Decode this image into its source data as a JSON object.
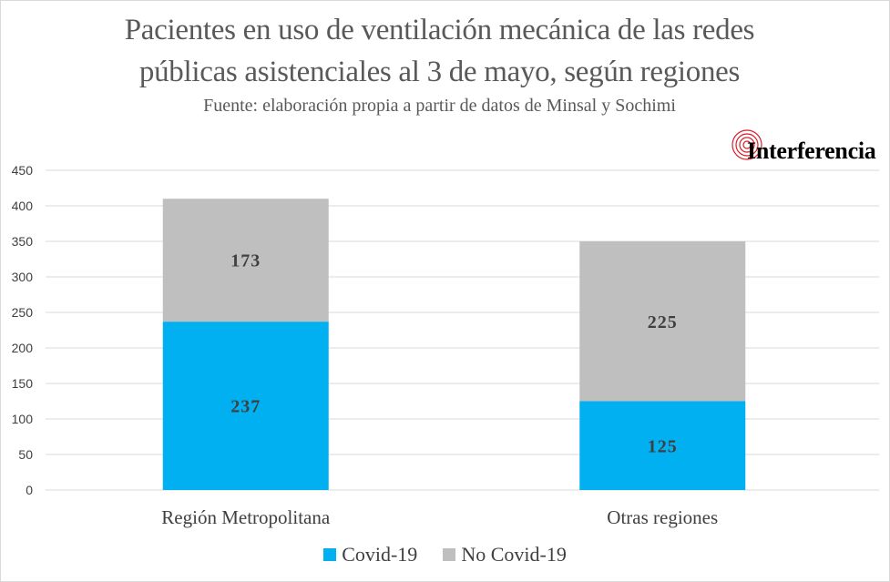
{
  "header": {
    "title_line1": "Pacientes en uso de ventilación mecánica de las redes",
    "title_line2": "públicas asistenciales al 3 de mayo, según regiones",
    "subtitle": "Fuente: elaboración propia a partir de datos de Minsal y Sochimi"
  },
  "logo": {
    "text": "Interferencia",
    "icon": "concentric-circles-icon",
    "color": "#d81e2a"
  },
  "colors": {
    "covid": "#00b0f0",
    "no_covid": "#bfbfbf",
    "grid": "#d9d9d9",
    "axis_text": "#404040"
  },
  "chart_data": {
    "type": "bar",
    "stacked": true,
    "title": "Pacientes en uso de ventilación mecánica de las redes públicas asistenciales al 3 de mayo, según regiones",
    "categories": [
      "Región Metropolitana",
      "Otras regiones"
    ],
    "series": [
      {
        "name": "Covid-19",
        "values": [
          237,
          125
        ],
        "color": "#00b0f0"
      },
      {
        "name": "No Covid-19",
        "values": [
          173,
          225
        ],
        "color": "#bfbfbf"
      }
    ],
    "ylim": [
      0,
      450
    ],
    "yticks": [
      0,
      50,
      100,
      150,
      200,
      250,
      300,
      350,
      400,
      450
    ],
    "grid": true,
    "legend": "bottom"
  }
}
